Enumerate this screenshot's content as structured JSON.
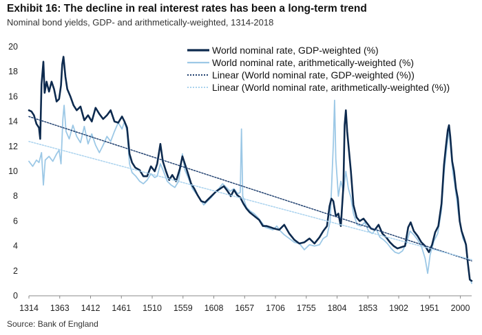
{
  "header": {
    "title": "Exhibit 16: The decline in real interest rates has been a long-term trend",
    "subtitle": "Nominal bond yields, GDP- and arithmetically-weighted, 1314-2018"
  },
  "footer": {
    "source": "Source: Bank of England"
  },
  "colors": {
    "gdp": "#0d2a4e",
    "arith": "#9cc8e6",
    "gdp_trend": "#1f3f6e",
    "arith_trend": "#a9d2ee"
  },
  "chart_data": {
    "type": "line",
    "title": "Exhibit 16: The decline in real interest rates has been a long-term trend",
    "subtitle": "Nominal bond yields, GDP- and arithmetically-weighted, 1314-2018",
    "xlim": [
      1314,
      2018
    ],
    "ylim": [
      0,
      20
    ],
    "x_ticks": [
      "1314",
      "1363",
      "1412",
      "1461",
      "1510",
      "1559",
      "1608",
      "1657",
      "1706",
      "1755",
      "1804",
      "1853",
      "1902",
      "1951",
      "2000"
    ],
    "y_ticks": [
      "0",
      "2",
      "4",
      "6",
      "8",
      "10",
      "12",
      "14",
      "16",
      "18",
      "20"
    ],
    "grid": false,
    "legend_position": "top-right",
    "series": [
      {
        "name": "World nominal rate, GDP-weighted (%)",
        "style": "solid-thick",
        "points": [
          [
            1314,
            14.9
          ],
          [
            1318,
            14.8
          ],
          [
            1322,
            14.5
          ],
          [
            1326,
            13.8
          ],
          [
            1330,
            13.5
          ],
          [
            1332,
            12.6
          ],
          [
            1334,
            17.0
          ],
          [
            1337,
            18.8
          ],
          [
            1339,
            16.3
          ],
          [
            1342,
            17.2
          ],
          [
            1346,
            16.4
          ],
          [
            1350,
            17.2
          ],
          [
            1354,
            16.6
          ],
          [
            1358,
            15.6
          ],
          [
            1362,
            15.8
          ],
          [
            1365,
            16.9
          ],
          [
            1367,
            18.6
          ],
          [
            1369,
            19.2
          ],
          [
            1372,
            17.6
          ],
          [
            1375,
            16.6
          ],
          [
            1380,
            16.0
          ],
          [
            1385,
            15.3
          ],
          [
            1390,
            14.9
          ],
          [
            1396,
            15.2
          ],
          [
            1402,
            14.1
          ],
          [
            1408,
            14.5
          ],
          [
            1414,
            14.0
          ],
          [
            1420,
            15.1
          ],
          [
            1426,
            14.6
          ],
          [
            1432,
            14.2
          ],
          [
            1438,
            14.5
          ],
          [
            1444,
            14.9
          ],
          [
            1450,
            14.0
          ],
          [
            1456,
            13.9
          ],
          [
            1462,
            14.4
          ],
          [
            1466,
            14.0
          ],
          [
            1470,
            13.5
          ],
          [
            1474,
            11.4
          ],
          [
            1478,
            10.7
          ],
          [
            1483,
            10.3
          ],
          [
            1490,
            10.1
          ],
          [
            1496,
            9.6
          ],
          [
            1502,
            9.6
          ],
          [
            1508,
            10.4
          ],
          [
            1514,
            10.0
          ],
          [
            1518,
            10.6
          ],
          [
            1523,
            12.2
          ],
          [
            1527,
            10.8
          ],
          [
            1532,
            10.0
          ],
          [
            1537,
            9.3
          ],
          [
            1542,
            9.7
          ],
          [
            1548,
            9.2
          ],
          [
            1554,
            10.2
          ],
          [
            1558,
            11.2
          ],
          [
            1562,
            10.6
          ],
          [
            1567,
            9.8
          ],
          [
            1572,
            9.0
          ],
          [
            1577,
            8.6
          ],
          [
            1582,
            8.1
          ],
          [
            1588,
            7.6
          ],
          [
            1594,
            7.5
          ],
          [
            1600,
            7.8
          ],
          [
            1606,
            8.1
          ],
          [
            1612,
            8.4
          ],
          [
            1618,
            8.6
          ],
          [
            1624,
            8.8
          ],
          [
            1630,
            8.4
          ],
          [
            1635,
            8.0
          ],
          [
            1640,
            8.5
          ],
          [
            1645,
            8.1
          ],
          [
            1650,
            7.9
          ],
          [
            1655,
            7.4
          ],
          [
            1660,
            7.0
          ],
          [
            1665,
            6.7
          ],
          [
            1670,
            6.5
          ],
          [
            1675,
            6.3
          ],
          [
            1680,
            6.1
          ],
          [
            1686,
            5.6
          ],
          [
            1692,
            5.6
          ],
          [
            1698,
            5.5
          ],
          [
            1704,
            5.4
          ],
          [
            1712,
            5.3
          ],
          [
            1720,
            5.7
          ],
          [
            1728,
            5.0
          ],
          [
            1736,
            4.5
          ],
          [
            1744,
            4.2
          ],
          [
            1752,
            4.3
          ],
          [
            1760,
            4.6
          ],
          [
            1768,
            4.2
          ],
          [
            1776,
            4.7
          ],
          [
            1782,
            5.2
          ],
          [
            1788,
            5.6
          ],
          [
            1792,
            7.2
          ],
          [
            1795,
            7.8
          ],
          [
            1798,
            7.6
          ],
          [
            1802,
            6.4
          ],
          [
            1806,
            6.6
          ],
          [
            1810,
            5.6
          ],
          [
            1814,
            8.8
          ],
          [
            1816,
            13.7
          ],
          [
            1818,
            14.9
          ],
          [
            1820,
            13.2
          ],
          [
            1823,
            11.6
          ],
          [
            1826,
            10.0
          ],
          [
            1830,
            7.3
          ],
          [
            1835,
            6.3
          ],
          [
            1840,
            6.0
          ],
          [
            1846,
            6.2
          ],
          [
            1852,
            5.8
          ],
          [
            1858,
            5.4
          ],
          [
            1864,
            5.3
          ],
          [
            1870,
            5.7
          ],
          [
            1876,
            5.0
          ],
          [
            1882,
            4.7
          ],
          [
            1888,
            4.3
          ],
          [
            1894,
            4.0
          ],
          [
            1900,
            3.8
          ],
          [
            1906,
            3.9
          ],
          [
            1912,
            4.0
          ],
          [
            1917,
            5.5
          ],
          [
            1921,
            5.9
          ],
          [
            1926,
            5.2
          ],
          [
            1932,
            4.8
          ],
          [
            1938,
            4.3
          ],
          [
            1944,
            4.0
          ],
          [
            1950,
            3.5
          ],
          [
            1955,
            4.1
          ],
          [
            1960,
            5.1
          ],
          [
            1965,
            5.6
          ],
          [
            1970,
            7.4
          ],
          [
            1974,
            10.5
          ],
          [
            1977,
            12.0
          ],
          [
            1980,
            13.3
          ],
          [
            1982,
            13.7
          ],
          [
            1984,
            12.8
          ],
          [
            1987,
            10.8
          ],
          [
            1990,
            10.0
          ],
          [
            1993,
            8.6
          ],
          [
            1996,
            7.8
          ],
          [
            1999,
            6.0
          ],
          [
            2002,
            5.2
          ],
          [
            2006,
            4.6
          ],
          [
            2009,
            4.1
          ],
          [
            2012,
            2.6
          ],
          [
            2015,
            1.3
          ],
          [
            2018,
            1.2
          ]
        ]
      },
      {
        "name": "World nominal rate, arithmetically-weighted (%)",
        "style": "solid",
        "points": [
          [
            1314,
            10.8
          ],
          [
            1320,
            10.4
          ],
          [
            1326,
            10.9
          ],
          [
            1330,
            10.7
          ],
          [
            1334,
            11.5
          ],
          [
            1337,
            8.9
          ],
          [
            1340,
            10.9
          ],
          [
            1346,
            11.2
          ],
          [
            1352,
            10.8
          ],
          [
            1358,
            11.4
          ],
          [
            1362,
            11.7
          ],
          [
            1365,
            10.6
          ],
          [
            1368,
            14.2
          ],
          [
            1370,
            15.3
          ],
          [
            1373,
            13.2
          ],
          [
            1378,
            12.6
          ],
          [
            1384,
            13.7
          ],
          [
            1390,
            12.8
          ],
          [
            1396,
            12.3
          ],
          [
            1402,
            13.6
          ],
          [
            1408,
            12.2
          ],
          [
            1414,
            13.0
          ],
          [
            1420,
            12.1
          ],
          [
            1426,
            11.5
          ],
          [
            1432,
            12.1
          ],
          [
            1438,
            12.8
          ],
          [
            1444,
            12.4
          ],
          [
            1450,
            13.2
          ],
          [
            1456,
            13.9
          ],
          [
            1462,
            13.4
          ],
          [
            1466,
            14.0
          ],
          [
            1470,
            13.2
          ],
          [
            1474,
            10.6
          ],
          [
            1478,
            9.9
          ],
          [
            1484,
            9.6
          ],
          [
            1490,
            9.2
          ],
          [
            1496,
            9.0
          ],
          [
            1502,
            9.3
          ],
          [
            1508,
            9.8
          ],
          [
            1514,
            9.5
          ],
          [
            1518,
            9.6
          ],
          [
            1523,
            10.6
          ],
          [
            1528,
            10.0
          ],
          [
            1534,
            9.2
          ],
          [
            1540,
            8.9
          ],
          [
            1546,
            8.7
          ],
          [
            1552,
            9.2
          ],
          [
            1558,
            11.4
          ],
          [
            1562,
            10.1
          ],
          [
            1568,
            9.4
          ],
          [
            1574,
            8.6
          ],
          [
            1580,
            8.2
          ],
          [
            1586,
            7.8
          ],
          [
            1592,
            7.3
          ],
          [
            1598,
            7.6
          ],
          [
            1604,
            7.9
          ],
          [
            1610,
            8.3
          ],
          [
            1616,
            8.6
          ],
          [
            1622,
            9.0
          ],
          [
            1628,
            8.7
          ],
          [
            1634,
            8.4
          ],
          [
            1640,
            8.6
          ],
          [
            1646,
            8.2
          ],
          [
            1650,
            8.3
          ],
          [
            1652,
            13.4
          ],
          [
            1654,
            8.0
          ],
          [
            1660,
            7.1
          ],
          [
            1666,
            6.8
          ],
          [
            1672,
            6.6
          ],
          [
            1678,
            6.3
          ],
          [
            1684,
            5.9
          ],
          [
            1690,
            5.5
          ],
          [
            1696,
            5.4
          ],
          [
            1702,
            5.3
          ],
          [
            1708,
            5.6
          ],
          [
            1714,
            5.2
          ],
          [
            1720,
            4.9
          ],
          [
            1728,
            4.6
          ],
          [
            1736,
            4.3
          ],
          [
            1744,
            4.2
          ],
          [
            1752,
            3.7
          ],
          [
            1760,
            4.1
          ],
          [
            1768,
            4.0
          ],
          [
            1776,
            4.1
          ],
          [
            1782,
            4.6
          ],
          [
            1788,
            4.8
          ],
          [
            1793,
            6.0
          ],
          [
            1798,
            12.2
          ],
          [
            1800,
            15.7
          ],
          [
            1802,
            11.0
          ],
          [
            1806,
            8.0
          ],
          [
            1810,
            9.2
          ],
          [
            1814,
            8.4
          ],
          [
            1818,
            10.0
          ],
          [
            1822,
            8.6
          ],
          [
            1826,
            7.9
          ],
          [
            1830,
            6.6
          ],
          [
            1836,
            5.7
          ],
          [
            1842,
            5.6
          ],
          [
            1848,
            5.9
          ],
          [
            1854,
            5.2
          ],
          [
            1860,
            5.0
          ],
          [
            1866,
            5.4
          ],
          [
            1872,
            4.7
          ],
          [
            1878,
            4.5
          ],
          [
            1884,
            4.2
          ],
          [
            1890,
            3.8
          ],
          [
            1896,
            3.5
          ],
          [
            1902,
            3.4
          ],
          [
            1908,
            3.6
          ],
          [
            1914,
            4.2
          ],
          [
            1920,
            5.2
          ],
          [
            1926,
            4.9
          ],
          [
            1932,
            4.5
          ],
          [
            1938,
            4.0
          ],
          [
            1944,
            3.0
          ],
          [
            1948,
            1.8
          ],
          [
            1952,
            3.3
          ],
          [
            1958,
            4.4
          ],
          [
            1964,
            5.0
          ],
          [
            1970,
            6.9
          ],
          [
            1974,
            9.8
          ],
          [
            1977,
            11.3
          ],
          [
            1980,
            12.5
          ],
          [
            1982,
            13.3
          ],
          [
            1985,
            11.6
          ],
          [
            1988,
            9.9
          ],
          [
            1991,
            9.0
          ],
          [
            1994,
            7.8
          ],
          [
            1997,
            6.6
          ],
          [
            2000,
            5.6
          ],
          [
            2004,
            4.6
          ],
          [
            2008,
            4.2
          ],
          [
            2012,
            2.6
          ],
          [
            2015,
            1.4
          ],
          [
            2018,
            1.0
          ]
        ]
      },
      {
        "name": "Linear (World nominal rate, GDP-weighted (%))",
        "style": "dotted-dark",
        "points": [
          [
            1314,
            14.4
          ],
          [
            2018,
            2.8
          ]
        ]
      },
      {
        "name": "Linear (World nominal rate, arithmetically-weighted (%))",
        "style": "dotted-light",
        "points": [
          [
            1314,
            12.4
          ],
          [
            2018,
            2.9
          ]
        ]
      }
    ]
  }
}
